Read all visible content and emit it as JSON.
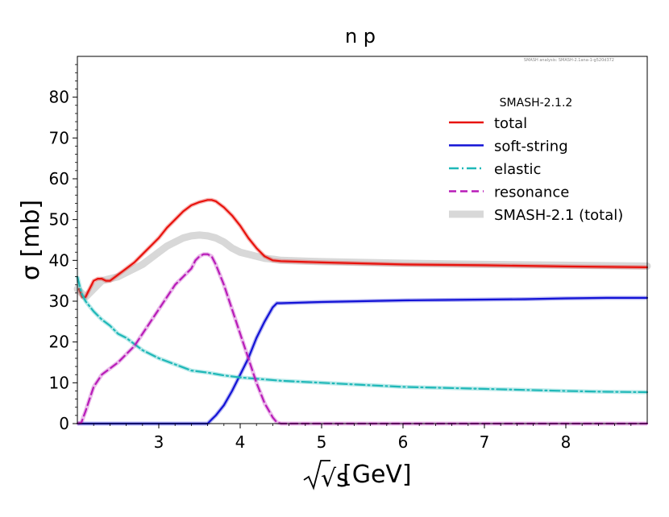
{
  "chart_data": {
    "type": "line",
    "title": "n p",
    "watermark": "SMASH analysis: SMASH-2.1ana-1-g520d372",
    "ylabel": "σ [mb]",
    "xlabel_root": "√s",
    "xlabel_unit": "[GeV]",
    "xlim": [
      2.0,
      9.0
    ],
    "ylim": [
      0,
      90
    ],
    "xticks": [
      3,
      4,
      5,
      6,
      7,
      8
    ],
    "yticks": [
      0,
      10,
      20,
      30,
      40,
      50,
      60,
      70,
      80
    ],
    "legend": {
      "title": "SMASH-2.1.2",
      "placement": "upper-right",
      "entries": [
        "total",
        "soft-string",
        "elastic",
        "resonance",
        "SMASH-2.1 (total)"
      ]
    },
    "series": [
      {
        "name": "total",
        "color": "#e8120c",
        "style": "solid",
        "x": [
          2.02,
          2.06,
          2.1,
          2.15,
          2.2,
          2.25,
          2.3,
          2.35,
          2.4,
          2.5,
          2.6,
          2.7,
          2.8,
          2.9,
          3.0,
          3.1,
          3.2,
          3.3,
          3.4,
          3.5,
          3.6,
          3.65,
          3.7,
          3.8,
          3.9,
          4.0,
          4.1,
          4.2,
          4.3,
          4.4,
          4.5,
          5.0,
          6.0,
          7.0,
          8.0,
          9.0
        ],
        "y": [
          33,
          31,
          31,
          33,
          35,
          35.5,
          35.5,
          35,
          35,
          36.5,
          38,
          39.5,
          41.5,
          43.5,
          45.5,
          48,
          50,
          52,
          53.5,
          54.3,
          54.8,
          54.8,
          54.5,
          53,
          51,
          48.5,
          45.5,
          43,
          41,
          40,
          39.8,
          39.5,
          39,
          38.8,
          38.5,
          38.3
        ]
      },
      {
        "name": "soft-string",
        "color": "#1212d6",
        "style": "solid",
        "x": [
          2.0,
          3.6,
          3.65,
          3.7,
          3.8,
          3.9,
          4.0,
          4.1,
          4.2,
          4.3,
          4.4,
          4.45,
          4.5,
          5.0,
          5.5,
          6.0,
          6.5,
          7.0,
          7.5,
          8.0,
          8.5,
          9.0
        ],
        "y": [
          0,
          0,
          1,
          2,
          4.5,
          8,
          12,
          16,
          21,
          25,
          28.5,
          29.5,
          29.5,
          29.8,
          30,
          30.2,
          30.3,
          30.4,
          30.5,
          30.7,
          30.8,
          30.8
        ]
      },
      {
        "name": "elastic",
        "color": "#1fb8b8",
        "style": "dashdot",
        "x": [
          2.0,
          2.05,
          2.1,
          2.2,
          2.3,
          2.4,
          2.5,
          2.6,
          2.7,
          2.8,
          2.9,
          3.0,
          3.2,
          3.4,
          3.6,
          3.8,
          4.0,
          4.2,
          4.5,
          5.0,
          5.5,
          6.0,
          7.0,
          8.0,
          8.5,
          9.0
        ],
        "y": [
          36,
          32,
          30,
          27.5,
          25.5,
          24,
          22,
          21,
          19.5,
          18,
          17,
          16,
          14.5,
          13,
          12.5,
          11.8,
          11.3,
          11,
          10.5,
          10,
          9.5,
          9,
          8.5,
          8,
          7.8,
          7.7
        ]
      },
      {
        "name": "resonance",
        "color": "#b81cb8",
        "style": "dashed",
        "x": [
          2.0,
          2.05,
          2.1,
          2.15,
          2.2,
          2.25,
          2.3,
          2.4,
          2.5,
          2.6,
          2.7,
          2.8,
          2.9,
          3.0,
          3.1,
          3.2,
          3.3,
          3.4,
          3.45,
          3.5,
          3.55,
          3.6,
          3.65,
          3.7,
          3.8,
          3.9,
          4.0,
          4.1,
          4.2,
          4.3,
          4.4,
          4.45,
          4.5,
          5.0,
          6.0,
          7.0,
          8.0,
          9.0
        ],
        "y": [
          0,
          0.3,
          3,
          6,
          9,
          10.5,
          12,
          13.5,
          15,
          17,
          19,
          22,
          25,
          28,
          31,
          34,
          36,
          38,
          40,
          41,
          41.5,
          41.5,
          41,
          39,
          34,
          28,
          22,
          16,
          10,
          5,
          1.5,
          0.3,
          0,
          0,
          0,
          0,
          0,
          0
        ]
      },
      {
        "name": "SMASH-2.1 (total)",
        "color": "#d8d8d8",
        "style": "solid-thick",
        "x": [
          2.0,
          2.1,
          2.2,
          2.3,
          2.4,
          2.5,
          2.6,
          2.7,
          2.8,
          2.9,
          3.0,
          3.1,
          3.2,
          3.3,
          3.4,
          3.5,
          3.6,
          3.7,
          3.8,
          3.9,
          4.0,
          4.1,
          4.2,
          4.3,
          4.4,
          4.5,
          5.0,
          6.0,
          7.0,
          8.0,
          9.0
        ],
        "y": [
          33,
          31,
          33,
          35,
          35.5,
          36,
          37,
          38,
          39,
          40.5,
          42,
          43.5,
          44.5,
          45.5,
          46,
          46.2,
          46,
          45.5,
          44.5,
          43,
          42,
          41.5,
          41,
          40.5,
          40.3,
          40,
          39.7,
          39.3,
          39,
          38.8,
          38.6
        ]
      }
    ]
  }
}
